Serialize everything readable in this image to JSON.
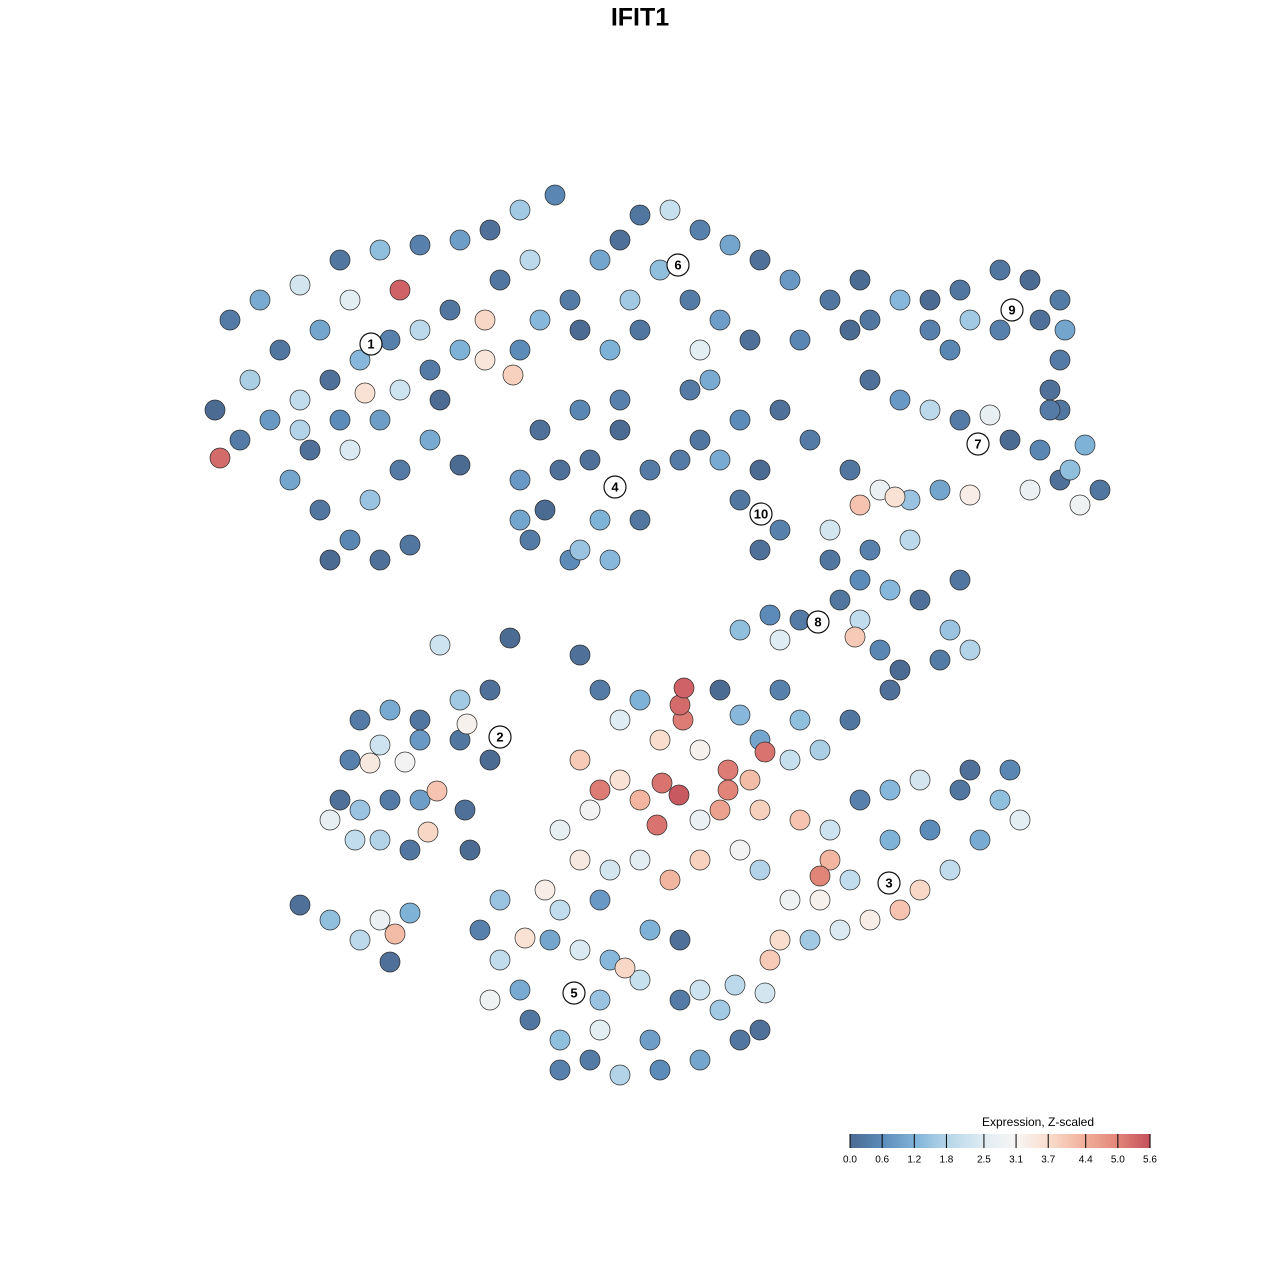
{
  "chart_data": {
    "type": "scatter",
    "title": "IFIT1",
    "xlim": [
      0,
      1280
    ],
    "ylim": [
      1280,
      0
    ],
    "x": [
      230,
      260,
      300,
      340,
      380,
      420,
      460,
      490,
      520,
      555,
      400,
      350,
      320,
      280,
      250,
      215,
      220,
      240,
      270,
      300,
      330,
      360,
      390,
      420,
      450,
      485,
      485,
      513,
      460,
      430,
      400,
      365,
      340,
      310,
      290,
      320,
      350,
      380,
      330,
      370,
      400,
      430,
      460,
      410,
      300,
      350,
      380,
      440,
      520,
      540,
      500,
      530,
      570,
      600,
      620,
      640,
      670,
      700,
      730,
      760,
      790,
      830,
      850,
      660,
      690,
      720,
      750,
      800,
      640,
      610,
      700,
      690,
      710,
      580,
      630,
      615,
      540,
      580,
      620,
      650,
      520,
      560,
      600,
      640,
      530,
      570,
      610,
      545,
      590,
      620,
      580,
      520,
      700,
      740,
      780,
      810,
      760,
      740,
      780,
      760,
      720,
      680,
      870,
      900,
      930,
      870,
      900,
      930,
      960,
      990,
      1010,
      1040,
      1070,
      1100,
      1080,
      1060,
      1030,
      970,
      940,
      910,
      880,
      860,
      895,
      910,
      850,
      1050,
      1085,
      1000,
      1030,
      1060,
      1065,
      1040,
      1000,
      970,
      960,
      930,
      1060,
      1050,
      1060,
      950,
      860,
      830,
      860,
      890,
      920,
      950,
      970,
      940,
      900,
      880,
      860,
      855,
      840,
      830,
      870,
      960,
      890,
      800,
      770,
      740,
      780,
      360,
      390,
      420,
      460,
      490,
      467,
      380,
      350,
      370,
      405,
      420,
      460,
      490,
      340,
      330,
      360,
      390,
      420,
      437,
      410,
      380,
      355,
      428,
      465,
      470,
      300,
      330,
      360,
      380,
      395,
      410,
      390,
      440,
      510,
      580,
      574,
      500,
      480,
      500,
      520,
      530,
      560,
      590,
      620,
      660,
      700,
      740,
      760,
      720,
      680,
      640,
      610,
      580,
      550,
      525,
      560,
      600,
      625,
      650,
      680,
      700,
      600,
      560,
      600,
      650,
      490,
      545,
      770,
      765,
      735,
      684,
      680,
      683,
      640,
      600,
      620,
      660,
      700,
      580,
      620,
      662,
      679,
      728,
      728,
      750,
      765,
      790,
      820,
      600,
      590,
      640,
      657,
      700,
      720,
      760,
      800,
      830,
      860,
      890,
      920,
      960,
      1000,
      1020,
      980,
      950,
      920,
      900,
      870,
      840,
      810,
      780,
      790,
      760,
      740,
      700,
      670,
      640,
      610,
      580,
      560,
      820,
      830,
      820,
      850,
      890,
      930,
      970,
      1010,
      760,
      800,
      850,
      780,
      720,
      740
    ],
    "y": [
      320,
      300,
      285,
      260,
      250,
      245,
      240,
      230,
      210,
      195,
      290,
      300,
      330,
      350,
      380,
      410,
      458,
      440,
      420,
      400,
      380,
      360,
      340,
      330,
      310,
      320,
      360,
      375,
      350,
      370,
      390,
      393,
      420,
      450,
      480,
      510,
      540,
      560,
      560,
      500,
      470,
      440,
      465,
      545,
      430,
      450,
      420,
      400,
      350,
      320,
      280,
      260,
      300,
      260,
      240,
      215,
      210,
      230,
      245,
      260,
      280,
      300,
      330,
      270,
      300,
      320,
      340,
      340,
      330,
      350,
      350,
      390,
      380,
      330,
      300,
      487,
      430,
      410,
      430,
      470,
      480,
      470,
      520,
      520,
      540,
      560,
      560,
      510,
      460,
      400,
      550,
      520,
      440,
      420,
      410,
      440,
      470,
      500,
      530,
      550,
      460,
      460,
      320,
      300,
      330,
      380,
      400,
      410,
      420,
      415,
      440,
      450,
      470,
      490,
      505,
      480,
      490,
      495,
      490,
      500,
      490,
      505,
      497,
      540,
      470,
      410,
      445,
      270,
      280,
      300,
      330,
      320,
      330,
      320,
      290,
      300,
      360,
      390,
      410,
      350,
      280,
      560,
      580,
      590,
      600,
      630,
      650,
      660,
      670,
      650,
      620,
      637,
      600,
      530,
      550,
      580,
      690,
      620,
      615,
      630,
      640,
      720,
      710,
      720,
      700,
      690,
      724,
      745,
      760,
      763,
      762,
      740,
      740,
      760,
      800,
      820,
      810,
      800,
      800,
      791,
      850,
      840,
      840,
      832,
      810,
      850,
      905,
      920,
      940,
      920,
      934,
      913,
      962,
      645,
      638,
      655,
      993,
      900,
      930,
      960,
      990,
      1020,
      1040,
      1060,
      1075,
      1070,
      1060,
      1040,
      1030,
      1010,
      1000,
      980,
      960,
      950,
      940,
      938,
      910,
      900,
      968,
      930,
      940,
      990,
      1000,
      1070,
      1030,
      1040,
      1000,
      890,
      960,
      993,
      985,
      688,
      705,
      720,
      700,
      690,
      720,
      740,
      750,
      760,
      780,
      783,
      795,
      790,
      770,
      780,
      752,
      760,
      750,
      790,
      810,
      800,
      825,
      820,
      810,
      810,
      820,
      830,
      800,
      790,
      780,
      790,
      800,
      820,
      840,
      870,
      890,
      910,
      920,
      930,
      940,
      940,
      900,
      870,
      850,
      860,
      880,
      860,
      870,
      860,
      830,
      876,
      860,
      900,
      880,
      840,
      830,
      770,
      770,
      740,
      720,
      720,
      690,
      690,
      715
    ],
    "values": [
      0.3,
      1.1,
      2.3,
      0.2,
      1.4,
      0.4,
      0.9,
      0.1,
      1.6,
      0.5,
      5.4,
      2.6,
      1.0,
      0.2,
      1.7,
      0.0,
      5.3,
      0.3,
      0.8,
      2.0,
      0.1,
      1.3,
      0.4,
      1.9,
      0.2,
      3.8,
      3.5,
      3.9,
      1.2,
      0.3,
      2.2,
      3.6,
      0.6,
      0.1,
      1.0,
      0.2,
      0.5,
      0.1,
      0.0,
      1.5,
      0.3,
      1.1,
      0.0,
      0.2,
      1.8,
      2.4,
      0.9,
      0.0,
      0.6,
      1.3,
      0.2,
      1.9,
      0.3,
      1.0,
      0.1,
      0.2,
      2.1,
      0.4,
      1.0,
      0.1,
      0.8,
      0.2,
      0.0,
      1.4,
      0.3,
      0.9,
      0.1,
      0.5,
      0.2,
      1.2,
      2.6,
      0.3,
      1.1,
      0.0,
      1.6,
      0.2,
      0.1,
      0.5,
      0.0,
      0.3,
      0.8,
      0.1,
      1.2,
      0.2,
      0.3,
      0.6,
      1.3,
      0.0,
      0.1,
      0.4,
      1.5,
      1.0,
      0.2,
      0.6,
      0.1,
      0.3,
      0.0,
      0.2,
      0.4,
      0.1,
      1.1,
      0.3,
      0.2,
      1.3,
      0.4,
      0.1,
      0.8,
      1.9,
      0.3,
      2.7,
      0.0,
      0.5,
      1.4,
      0.2,
      2.9,
      0.1,
      2.8,
      3.3,
      1.0,
      1.5,
      2.8,
      4.1,
      3.6,
      1.9,
      0.2,
      0.3,
      1.2,
      0.2,
      0.0,
      0.3,
      1.0,
      0.1,
      0.4,
      1.6,
      0.2,
      0.0,
      0.3,
      0.1,
      0.2,
      0.5,
      0.0,
      0.2,
      0.6,
      1.3,
      0.1,
      1.5,
      1.8,
      0.3,
      0.0,
      0.5,
      2.0,
      4.0,
      0.2,
      2.3,
      0.4,
      0.2,
      0.1,
      0.3,
      0.6,
      1.4,
      2.5,
      0.3,
      1.1,
      0.2,
      1.6,
      0.1,
      3.2,
      2.2,
      0.4,
      3.4,
      3.0,
      0.8,
      0.2,
      0.0,
      0.1,
      2.7,
      1.5,
      0.3,
      0.9,
      4.1,
      0.2,
      1.8,
      2.0,
      3.8,
      0.1,
      0.0,
      0.1,
      1.4,
      1.9,
      2.8,
      4.2,
      1.2,
      0.1,
      2.2,
      0.0,
      0.1,
      0.7,
      1.5,
      0.4,
      2.0,
      1.1,
      0.2,
      1.4,
      0.3,
      1.8,
      0.6,
      1.0,
      0.2,
      0.1,
      1.6,
      0.3,
      2.1,
      1.3,
      2.4,
      1.0,
      3.6,
      2.0,
      0.8,
      3.8,
      1.2,
      0.1,
      2.2,
      1.5,
      0.4,
      2.6,
      0.9,
      2.9,
      3.3,
      4.0,
      2.3,
      1.9,
      5.4,
      5.3,
      5.1,
      1.2,
      0.3,
      2.5,
      3.7,
      3.2,
      4.0,
      3.6,
      5.2,
      5.5,
      5.0,
      5.1,
      4.2,
      5.2,
      2.1,
      1.7,
      5.1,
      3.0,
      4.3,
      5.2,
      2.8,
      4.6,
      3.9,
      4.1,
      2.2,
      0.4,
      1.3,
      2.3,
      0.2,
      1.4,
      2.6,
      1.1,
      2.0,
      3.8,
      4.1,
      3.3,
      2.4,
      1.6,
      3.7,
      2.9,
      1.8,
      3.0,
      3.9,
      4.3,
      2.6,
      2.3,
      3.4,
      2.7,
      5.0,
      4.3,
      3.2,
      2.0,
      1.2,
      0.6,
      0.1,
      0.5,
      1.0,
      1.4,
      0.2,
      0.4,
      0.0,
      1.3
    ],
    "annotations": [
      {
        "text": "1",
        "x": 371,
        "y": 344
      },
      {
        "text": "2",
        "x": 500,
        "y": 737
      },
      {
        "text": "3",
        "x": 889,
        "y": 883
      },
      {
        "text": "4",
        "x": 615,
        "y": 487
      },
      {
        "text": "5",
        "x": 574,
        "y": 993
      },
      {
        "text": "6",
        "x": 678,
        "y": 265
      },
      {
        "text": "7",
        "x": 978,
        "y": 444
      },
      {
        "text": "8",
        "x": 818,
        "y": 622
      },
      {
        "text": "9",
        "x": 1012,
        "y": 310
      },
      {
        "text": "10",
        "x": 761,
        "y": 514
      }
    ],
    "colorbar": {
      "title": "Expression, Z-scaled",
      "lim": [
        0,
        5.6
      ],
      "ticks": [
        {
          "value": 0,
          "label": "0.0"
        },
        0.6,
        1.2,
        1.8,
        2.5,
        3.1,
        3.7,
        4.4,
        {
          "value": 5,
          "label": "5.0"
        },
        5.6
      ],
      "colors": [
        "#4b6b93",
        "#5d8cba",
        "#82b5d9",
        "#b9d8ea",
        "#dfecf3",
        "#f7f5f3",
        "#fadccb",
        "#f1b19b",
        "#e3877a",
        "#c4505c"
      ]
    },
    "legend_position": "lower right",
    "grid": false
  }
}
